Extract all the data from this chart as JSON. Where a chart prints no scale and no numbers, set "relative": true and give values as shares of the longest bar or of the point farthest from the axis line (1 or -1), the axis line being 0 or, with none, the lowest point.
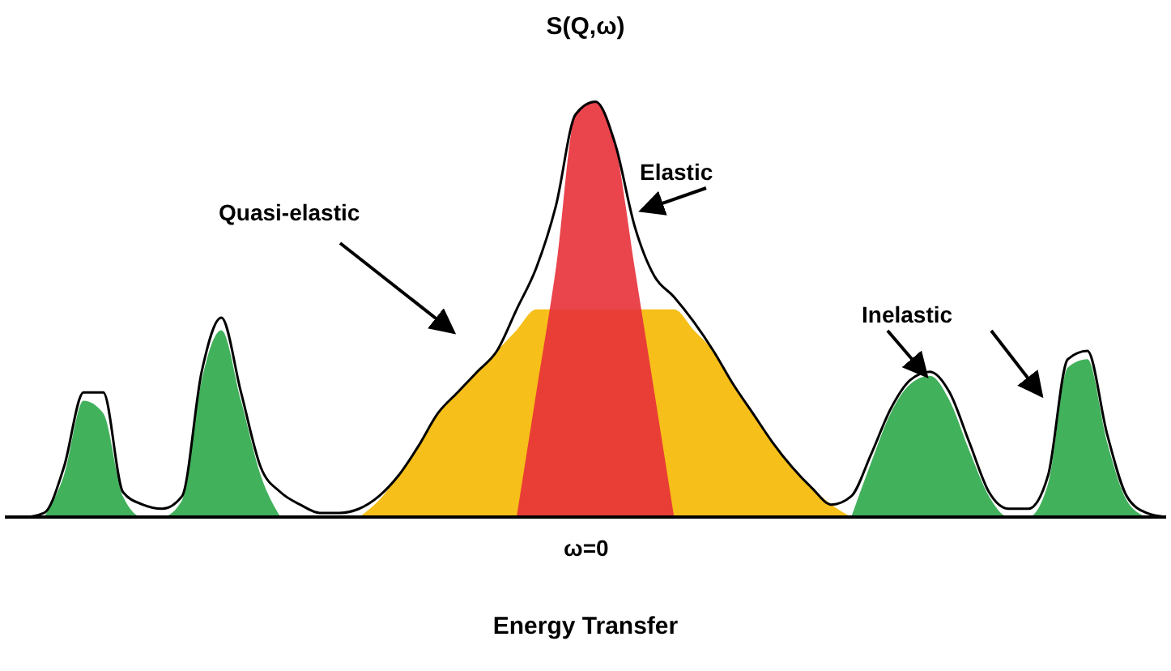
{
  "chart_data": {
    "type": "line",
    "title": "S(Q,ω)",
    "xlabel": "Energy Transfer",
    "relative": true,
    "grid": false,
    "legend": false,
    "marker": "none",
    "categories": [
      null,
      null,
      null,
      null,
      null,
      null,
      null,
      null,
      null,
      null,
      null,
      null,
      null,
      null,
      null,
      null,
      null,
      null,
      null,
      null,
      null,
      null,
      null,
      null,
      null,
      null,
      null,
      null,
      null,
      null,
      null,
      null,
      null,
      null,
      null,
      null,
      null,
      null,
      null,
      null,
      null,
      null,
      null,
      null,
      null,
      null,
      null,
      null,
      null,
      null,
      null,
      null,
      null,
      null,
      null,
      null,
      null,
      null,
      null,
      null
    ],
    "annotations": [
      "Elastic",
      "Quasi-elastic",
      "Inelastic",
      "ω=0"
    ],
    "series": [
      {
        "type": "area",
        "color": "#f5b800",
        "values": [
          null,
          null,
          null,
          null,
          null,
          null,
          null,
          null,
          null,
          null,
          null,
          null,
          null,
          null,
          null,
          null,
          null,
          null,
          0,
          0.04,
          0.1,
          0.17,
          0.25,
          0.3,
          0.35,
          0.4,
          0.45,
          0.5,
          0.5,
          0.5,
          0.5,
          0.5,
          0.5,
          0.5,
          0.5,
          0.45,
          0.4,
          0.32,
          0.25,
          0.18,
          0.12,
          0.07,
          0.03,
          0,
          null,
          null,
          null,
          null,
          null,
          null,
          null,
          null,
          null,
          null,
          null,
          null,
          null,
          null,
          null,
          null
        ]
      },
      {
        "type": "area",
        "color": "#e8303a",
        "values": [
          null,
          null,
          null,
          null,
          null,
          null,
          null,
          null,
          null,
          null,
          null,
          null,
          null,
          null,
          null,
          null,
          null,
          null,
          null,
          null,
          null,
          null,
          null,
          null,
          null,
          null,
          0,
          0.3,
          0.6,
          0.97,
          1,
          0.9,
          0.6,
          0.3,
          0,
          null,
          null,
          null,
          null,
          null,
          null,
          null,
          null,
          null,
          null,
          null,
          null,
          null,
          null,
          null,
          null,
          null,
          null,
          null,
          null,
          null,
          null,
          null,
          null,
          null
        ]
      },
      {
        "type": "area",
        "color": "#2ea84a",
        "values": [
          null,
          null,
          0,
          0.1,
          0.28,
          0.25,
          0.05,
          0,
          0,
          0.04,
          0.33,
          0.45,
          0.28,
          0.1,
          0,
          null,
          null,
          null,
          null,
          null,
          null,
          null,
          null,
          null,
          null,
          null,
          null,
          null,
          null,
          null,
          null,
          null,
          null,
          null,
          null,
          null,
          null,
          null,
          null,
          null,
          null,
          null,
          null,
          0,
          0.13,
          0.25,
          0.32,
          0.34,
          0.28,
          0.16,
          0.05,
          0,
          0,
          0.08,
          0.36,
          0.38,
          0.18,
          0.04,
          0,
          null
        ]
      },
      {
        "color": "#000000",
        "values": [
          0,
          0,
          0.01,
          0.12,
          0.3,
          0.3,
          0.06,
          0.03,
          0.02,
          0.05,
          0.35,
          0.48,
          0.3,
          0.12,
          0.06,
          0.03,
          0.01,
          0.01,
          0.02,
          0.05,
          0.1,
          0.17,
          0.25,
          0.3,
          0.35,
          0.4,
          0.5,
          0.6,
          0.75,
          0.97,
          1,
          0.9,
          0.7,
          0.58,
          0.53,
          0.47,
          0.4,
          0.32,
          0.25,
          0.18,
          0.12,
          0.07,
          0.03,
          0.05,
          0.15,
          0.26,
          0.33,
          0.35,
          0.3,
          0.18,
          0.06,
          0.02,
          0.02,
          0.1,
          0.38,
          0.4,
          0.2,
          0.05,
          0.01,
          0
        ]
      }
    ]
  }
}
